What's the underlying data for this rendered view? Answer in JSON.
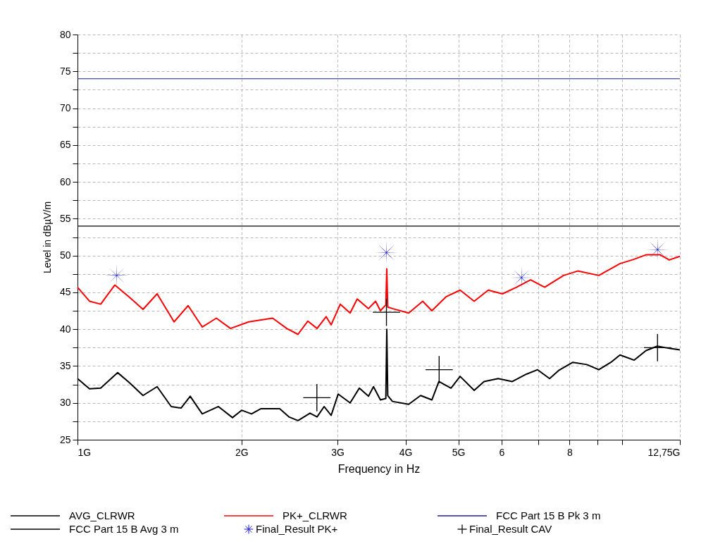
{
  "chart_data": {
    "type": "line",
    "xlabel": "Frequency in Hz",
    "ylabel": "Level in dBµV/m",
    "log": "x",
    "grid": true,
    "legend": "bottom",
    "xlim": [
      1,
      12.75
    ],
    "xticks": [
      {
        "value": 1,
        "label": "1G"
      },
      {
        "value": 2,
        "label": "2G"
      },
      {
        "value": 3,
        "label": "3G"
      },
      {
        "value": 4,
        "label": "4G"
      },
      {
        "value": 5,
        "label": "5G"
      },
      6,
      {
        "value": 7,
        "label": null
      },
      8,
      {
        "value": 9,
        "label": null
      },
      {
        "value": 10,
        "label": null
      },
      {
        "value": 12.75,
        "label": "12,75G"
      }
    ],
    "ylim": [
      25,
      80
    ],
    "yticks": [
      25,
      {
        "value": 27.5,
        "label": null
      },
      30,
      {
        "value": 32.5,
        "label": null
      },
      35,
      {
        "value": 37.5,
        "label": null
      },
      40,
      {
        "value": 42.5,
        "label": null
      },
      45,
      {
        "value": 47.5,
        "label": null
      },
      50,
      {
        "value": 52.5,
        "label": null
      },
      55,
      {
        "value": 57.5,
        "label": null
      },
      60,
      {
        "value": 62.5,
        "label": null
      },
      65,
      {
        "value": 67.5,
        "label": null
      },
      70,
      {
        "value": 72.5,
        "label": null
      },
      75,
      {
        "value": 77.5,
        "label": null
      },
      80
    ],
    "series": [
      {
        "name": "AVG_CLRWR",
        "color": "#000000",
        "x": [
          1,
          1.052,
          1.103,
          1.185,
          1.243,
          1.319,
          1.4,
          1.486,
          1.549,
          1.61,
          1.694,
          1.814,
          1.925,
          2.001,
          2.086,
          2.169,
          2.35,
          2.443,
          2.539,
          2.671,
          2.752,
          2.835,
          2.921,
          3.009,
          3.165,
          3.29,
          3.42,
          3.493,
          3.597,
          3.68,
          3.695,
          3.71,
          3.784,
          4.053,
          4.263,
          4.47,
          4.605,
          4.846,
          5.037,
          5.346,
          5.573,
          5.915,
          6.28,
          6.665,
          6.988,
          7.351,
          7.641,
          8.11,
          8.606,
          9.051,
          9.524,
          9.899,
          10.51,
          11.05,
          11.59,
          12.19,
          12.75
        ],
        "values": [
          33.3,
          31.9,
          32.0,
          34.1,
          32.8,
          31.0,
          32.2,
          29.5,
          29.3,
          30.9,
          28.5,
          29.5,
          28.0,
          29.0,
          28.5,
          29.2,
          29.2,
          28.1,
          27.6,
          28.6,
          28.1,
          29.5,
          28.3,
          31.2,
          30.0,
          32.0,
          30.9,
          32.2,
          30.4,
          30.6,
          40.0,
          31.0,
          30.2,
          29.8,
          31.0,
          30.4,
          32.9,
          32.0,
          33.6,
          31.7,
          32.9,
          33.3,
          32.9,
          33.9,
          34.5,
          33.3,
          34.4,
          35.5,
          35.2,
          34.5,
          35.5,
          36.5,
          35.8,
          37.1,
          37.7,
          37.4,
          37.2
        ]
      },
      {
        "name": "PK+_CLRWR",
        "color": "#ff0000",
        "x": [
          1,
          1.052,
          1.103,
          1.171,
          1.243,
          1.319,
          1.4,
          1.504,
          1.596,
          1.694,
          1.798,
          1.909,
          2.062,
          2.281,
          2.421,
          2.539,
          2.647,
          2.752,
          2.86,
          2.921,
          3.036,
          3.165,
          3.261,
          3.42,
          3.524,
          3.597,
          3.68,
          3.695,
          3.71,
          3.784,
          4.053,
          4.301,
          4.47,
          4.746,
          5.037,
          5.346,
          5.673,
          6.022,
          6.393,
          6.785,
          7.2,
          7.802,
          8.279,
          9.051,
          9.899,
          10.51,
          11.05,
          11.73,
          12.19,
          12.75
        ],
        "values": [
          45.7,
          43.8,
          43.4,
          46.0,
          44.4,
          42.7,
          44.8,
          41.0,
          43.2,
          40.3,
          41.5,
          40.1,
          41.0,
          41.5,
          40.1,
          39.3,
          41.1,
          40.1,
          41.7,
          40.6,
          43.4,
          42.2,
          44.1,
          42.8,
          43.8,
          42.5,
          43.3,
          48.2,
          43.0,
          42.8,
          42.2,
          43.8,
          42.5,
          44.4,
          45.3,
          43.8,
          45.3,
          44.8,
          45.7,
          46.7,
          45.7,
          47.3,
          47.9,
          47.3,
          48.9,
          49.5,
          50.1,
          50.1,
          49.4,
          49.9
        ]
      },
      {
        "name": "FCC Part 15 B Pk 3 m",
        "color": "#1a1aa8",
        "x": [
          1,
          12.75
        ],
        "values": [
          74,
          74
        ]
      },
      {
        "name": "FCC Part 15 B Avg 3 m",
        "color": "#000000",
        "x": [
          1,
          12.75
        ],
        "values": [
          54,
          54
        ]
      },
      {
        "name": "Final_Result PK+",
        "type": "scatter",
        "marker": "star",
        "color": "#1c1cc8",
        "x": [
          1.18,
          3.69,
          6.53,
          11.6
        ],
        "values": [
          47.3,
          50.4,
          47.0,
          50.8
        ]
      },
      {
        "name": "Final_Result CAV",
        "type": "scatter",
        "marker": "cross",
        "color": "#000000",
        "x": [
          2.75,
          3.69,
          4.61,
          11.6
        ],
        "values": [
          30.7,
          42.3,
          34.5,
          37.5
        ]
      }
    ]
  }
}
